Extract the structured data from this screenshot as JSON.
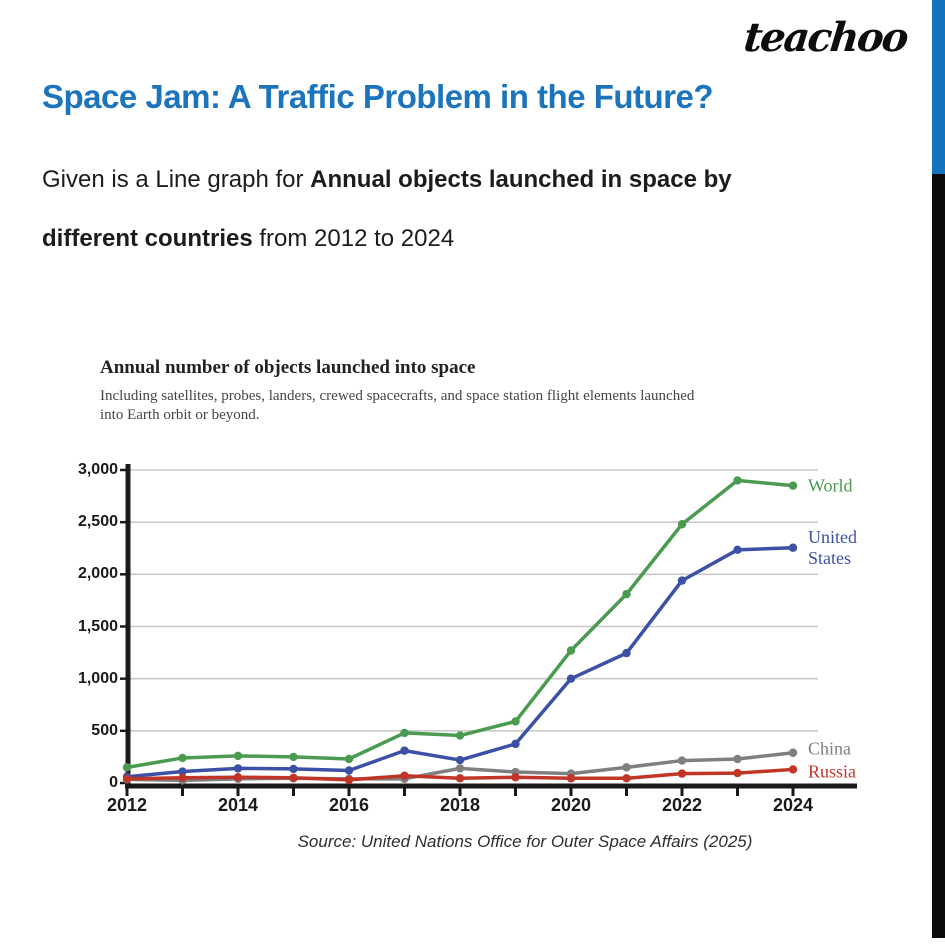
{
  "brand": {
    "logo_text": "teachoo"
  },
  "page": {
    "heading": "Space Jam: A Traffic Problem in the Future?",
    "accent_color": "#1b74bc",
    "intro": {
      "lines": [
        {
          "normal_prefix": "Given is a Line graph for ",
          "bold": "Annual objects launched in space by",
          "normal_suffix": ""
        },
        {
          "normal_prefix": "",
          "bold": "different countries",
          "normal_suffix": " from 2012 to 2024"
        }
      ]
    }
  },
  "decor": {
    "side_bar_top_color": "#1374bd",
    "side_bar_bottom_color": "#0b0b0b"
  },
  "chart_data": {
    "type": "line",
    "title": "Annual number of objects launched into space",
    "subtitle_lines": [
      "Including satellites, probes, landers, crewed spacecrafts, and space station flight elements launched",
      "into Earth orbit or beyond."
    ],
    "source": "Source: United Nations Office for Outer Space Affairs (2025)",
    "xlabel": "",
    "ylabel": "",
    "x": [
      2012,
      2013,
      2014,
      2015,
      2016,
      2017,
      2018,
      2019,
      2020,
      2021,
      2022,
      2023,
      2024
    ],
    "x_labeled_years": [
      "2012",
      "2014",
      "2016",
      "2018",
      "2020",
      "2022",
      "2024"
    ],
    "y_ticks": [
      0,
      500,
      1000,
      1500,
      2000,
      2500,
      3000
    ],
    "y_tick_labels": [
      "0",
      "500",
      "1,000",
      "1,500",
      "2,000",
      "2,500",
      "3,000"
    ],
    "ylim": [
      0,
      3000
    ],
    "grid": true,
    "grid_color": "#c9c9c9",
    "axis_color": "#1a1a1a",
    "legend_position": "right-of-line-ends",
    "series": [
      {
        "name": "World",
        "color": "#4a9b4f",
        "values": [
          150,
          240,
          260,
          250,
          230,
          480,
          455,
          590,
          1270,
          1810,
          2480,
          2900,
          2850
        ]
      },
      {
        "name": "United States",
        "color": "#3c51a5",
        "values": [
          60,
          110,
          140,
          135,
          120,
          310,
          220,
          375,
          1000,
          1245,
          1940,
          2235,
          2255
        ]
      },
      {
        "name": "China",
        "color": "#7f7f7f",
        "values": [
          35,
          25,
          40,
          45,
          40,
          40,
          140,
          105,
          90,
          150,
          215,
          230,
          290
        ]
      },
      {
        "name": "Russia",
        "color": "#c13527",
        "values": [
          40,
          50,
          55,
          50,
          30,
          70,
          45,
          55,
          45,
          45,
          90,
          95,
          130
        ]
      }
    ]
  }
}
